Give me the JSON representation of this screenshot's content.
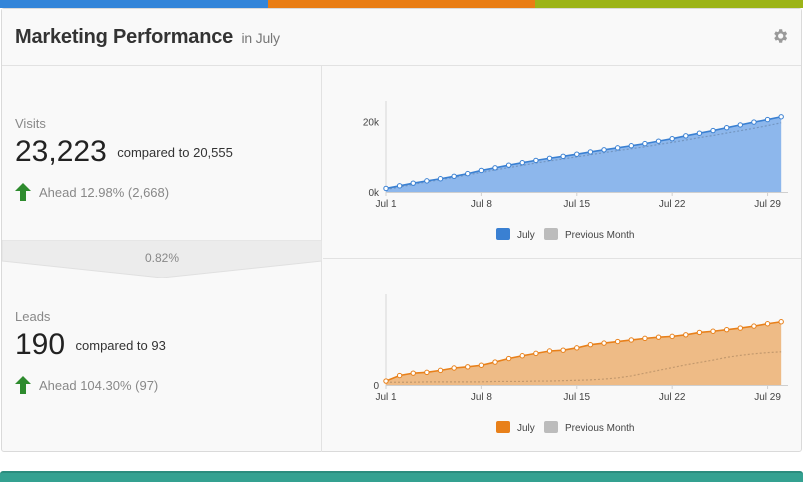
{
  "colors": {
    "bar_blue": "#3385d9",
    "bar_orange": "#e97d14",
    "bar_olive": "#9cb418",
    "visits_fill": "#8db7ec",
    "visits_line": "#3a80d2",
    "leads_fill": "#eebb86",
    "leads_line": "#e8801a",
    "previous": "#bcbcbc",
    "ahead_arrow": "#2e8b2e",
    "teal": "#34a191"
  },
  "header": {
    "title": "Marketing Performance",
    "subtitle": "in July",
    "settings_icon": "gear-icon"
  },
  "visits": {
    "label": "Visits",
    "value": "23,223",
    "compare": "compared to 20,555",
    "ahead": "Ahead 12.98% (2,668)"
  },
  "conversion": {
    "rate": "0.82%"
  },
  "leads": {
    "label": "Leads",
    "value": "190",
    "compare": "compared to 93",
    "ahead": "Ahead 104.30% (97)"
  },
  "legend": {
    "current": "July",
    "previous": "Previous Month"
  },
  "chart_data": [
    {
      "type": "area",
      "x_ticks": [
        "Jul 1",
        "Jul 8",
        "Jul 15",
        "Jul 22",
        "Jul 29"
      ],
      "y_ticks": [
        "0k",
        "20k"
      ],
      "ylim": [
        0,
        23500
      ],
      "x_days": [
        1,
        2,
        3,
        4,
        5,
        6,
        7,
        8,
        9,
        10,
        11,
        12,
        13,
        14,
        15,
        16,
        17,
        18,
        19,
        20,
        21,
        22,
        23,
        24,
        25,
        26,
        27,
        28,
        29,
        30
      ],
      "series": [
        {
          "name": "July",
          "values": [
            1000,
            1750,
            2500,
            3150,
            3750,
            4450,
            5200,
            6100,
            6850,
            7600,
            8300,
            8950,
            9550,
            10100,
            10700,
            11350,
            11950,
            12500,
            13100,
            13700,
            14400,
            15100,
            15900,
            16650,
            17400,
            18200,
            19000,
            19800,
            20500,
            21300
          ]
        },
        {
          "name": "Previous Month",
          "values": [
            700,
            1400,
            2150,
            2850,
            3500,
            4150,
            4850,
            5550,
            6250,
            6900,
            7550,
            8200,
            8800,
            9350,
            9950,
            10550,
            11150,
            11700,
            12250,
            12800,
            13450,
            14050,
            14700,
            15400,
            16000,
            16700,
            17350,
            18050,
            18800,
            19600
          ]
        }
      ]
    },
    {
      "type": "area",
      "x_ticks": [
        "Jul 1",
        "Jul 8",
        "Jul 15",
        "Jul 22",
        "Jul 29"
      ],
      "y_ticks": [
        "0"
      ],
      "ylim": [
        0,
        210
      ],
      "x_days": [
        1,
        2,
        3,
        4,
        5,
        6,
        7,
        8,
        9,
        10,
        11,
        12,
        13,
        14,
        15,
        16,
        17,
        18,
        19,
        20,
        21,
        22,
        23,
        24,
        25,
        26,
        27,
        28,
        29,
        30
      ],
      "series": [
        {
          "name": "July",
          "values": [
            10,
            24,
            30,
            32,
            37,
            43,
            46,
            50,
            58,
            67,
            74,
            80,
            86,
            88,
            94,
            102,
            106,
            110,
            114,
            118,
            121,
            123,
            127,
            133,
            136,
            140,
            144,
            149,
            155,
            160
          ]
        },
        {
          "name": "Previous Month",
          "values": [
            7,
            7,
            7,
            8,
            8,
            8,
            8,
            8,
            9,
            9,
            9,
            10,
            10,
            11,
            12,
            13,
            15,
            18,
            23,
            30,
            37,
            44,
            51,
            57,
            63,
            70,
            75,
            79,
            82,
            84
          ]
        }
      ]
    }
  ]
}
